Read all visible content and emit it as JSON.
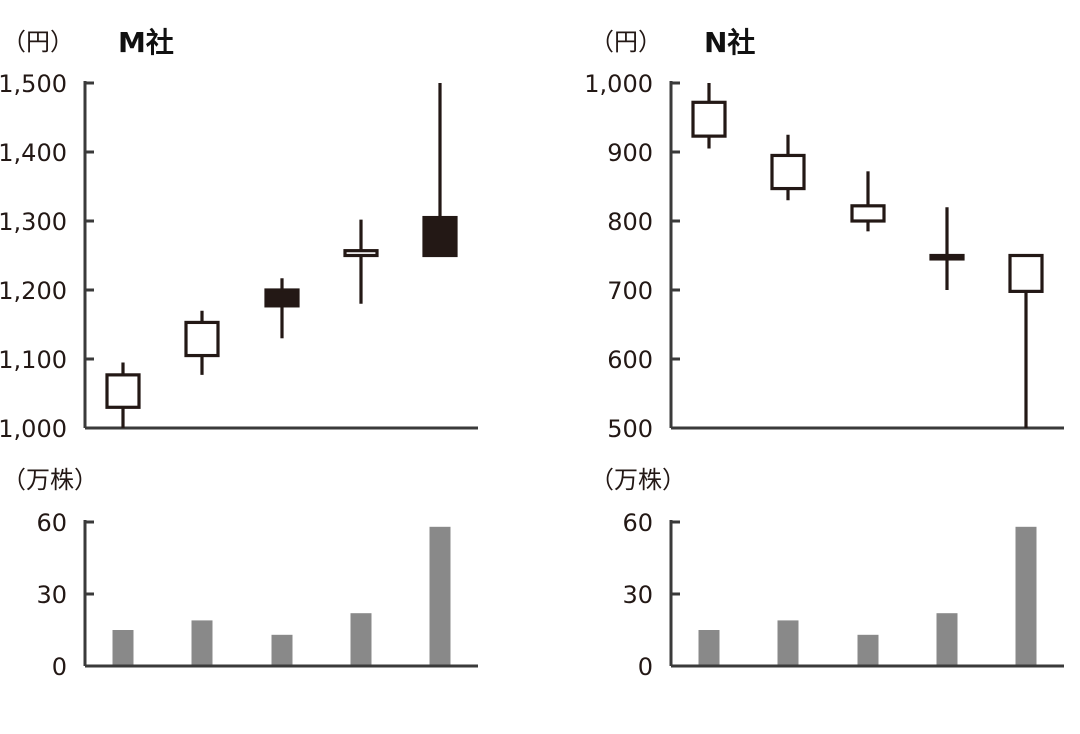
{
  "chart_data": [
    {
      "type": "candlestick",
      "title": "M社",
      "price_unit": "（円）",
      "volume_unit": "（万株）",
      "price_ylim": [
        1000,
        1500
      ],
      "price_ticks": [
        "1,000",
        "1,100",
        "1,200",
        "1,300",
        "1,400",
        "1,500"
      ],
      "volume_ylim": [
        0,
        60
      ],
      "volume_ticks": [
        "0",
        "30",
        "60"
      ],
      "candles": [
        {
          "open": 1030,
          "close": 1077,
          "high": 1095,
          "low": 1000
        },
        {
          "open": 1105,
          "close": 1153,
          "high": 1170,
          "low": 1077
        },
        {
          "open": 1200,
          "close": 1177,
          "high": 1217,
          "low": 1130
        },
        {
          "open": 1250,
          "close": 1257,
          "high": 1302,
          "low": 1180
        },
        {
          "open": 1305,
          "close": 1250,
          "high": 1500,
          "low": 1250
        }
      ],
      "volumes": [
        15,
        19,
        13,
        22,
        58
      ]
    },
    {
      "type": "candlestick",
      "title": "N社",
      "price_unit": "（円）",
      "volume_unit": "（万株）",
      "price_ylim": [
        500,
        1000
      ],
      "price_ticks": [
        "500",
        "600",
        "700",
        "800",
        "900",
        "1,000"
      ],
      "volume_ylim": [
        0,
        60
      ],
      "volume_ticks": [
        "0",
        "30",
        "60"
      ],
      "candles": [
        {
          "open": 923,
          "close": 972,
          "high": 1000,
          "low": 905
        },
        {
          "open": 847,
          "close": 895,
          "high": 925,
          "low": 830
        },
        {
          "open": 800,
          "close": 822,
          "high": 872,
          "low": 785
        },
        {
          "open": 750,
          "close": 745,
          "high": 820,
          "low": 700
        },
        {
          "open": 698,
          "close": 750,
          "high": 750,
          "low": 500
        }
      ],
      "volumes": [
        15,
        19,
        13,
        22,
        58
      ]
    }
  ]
}
